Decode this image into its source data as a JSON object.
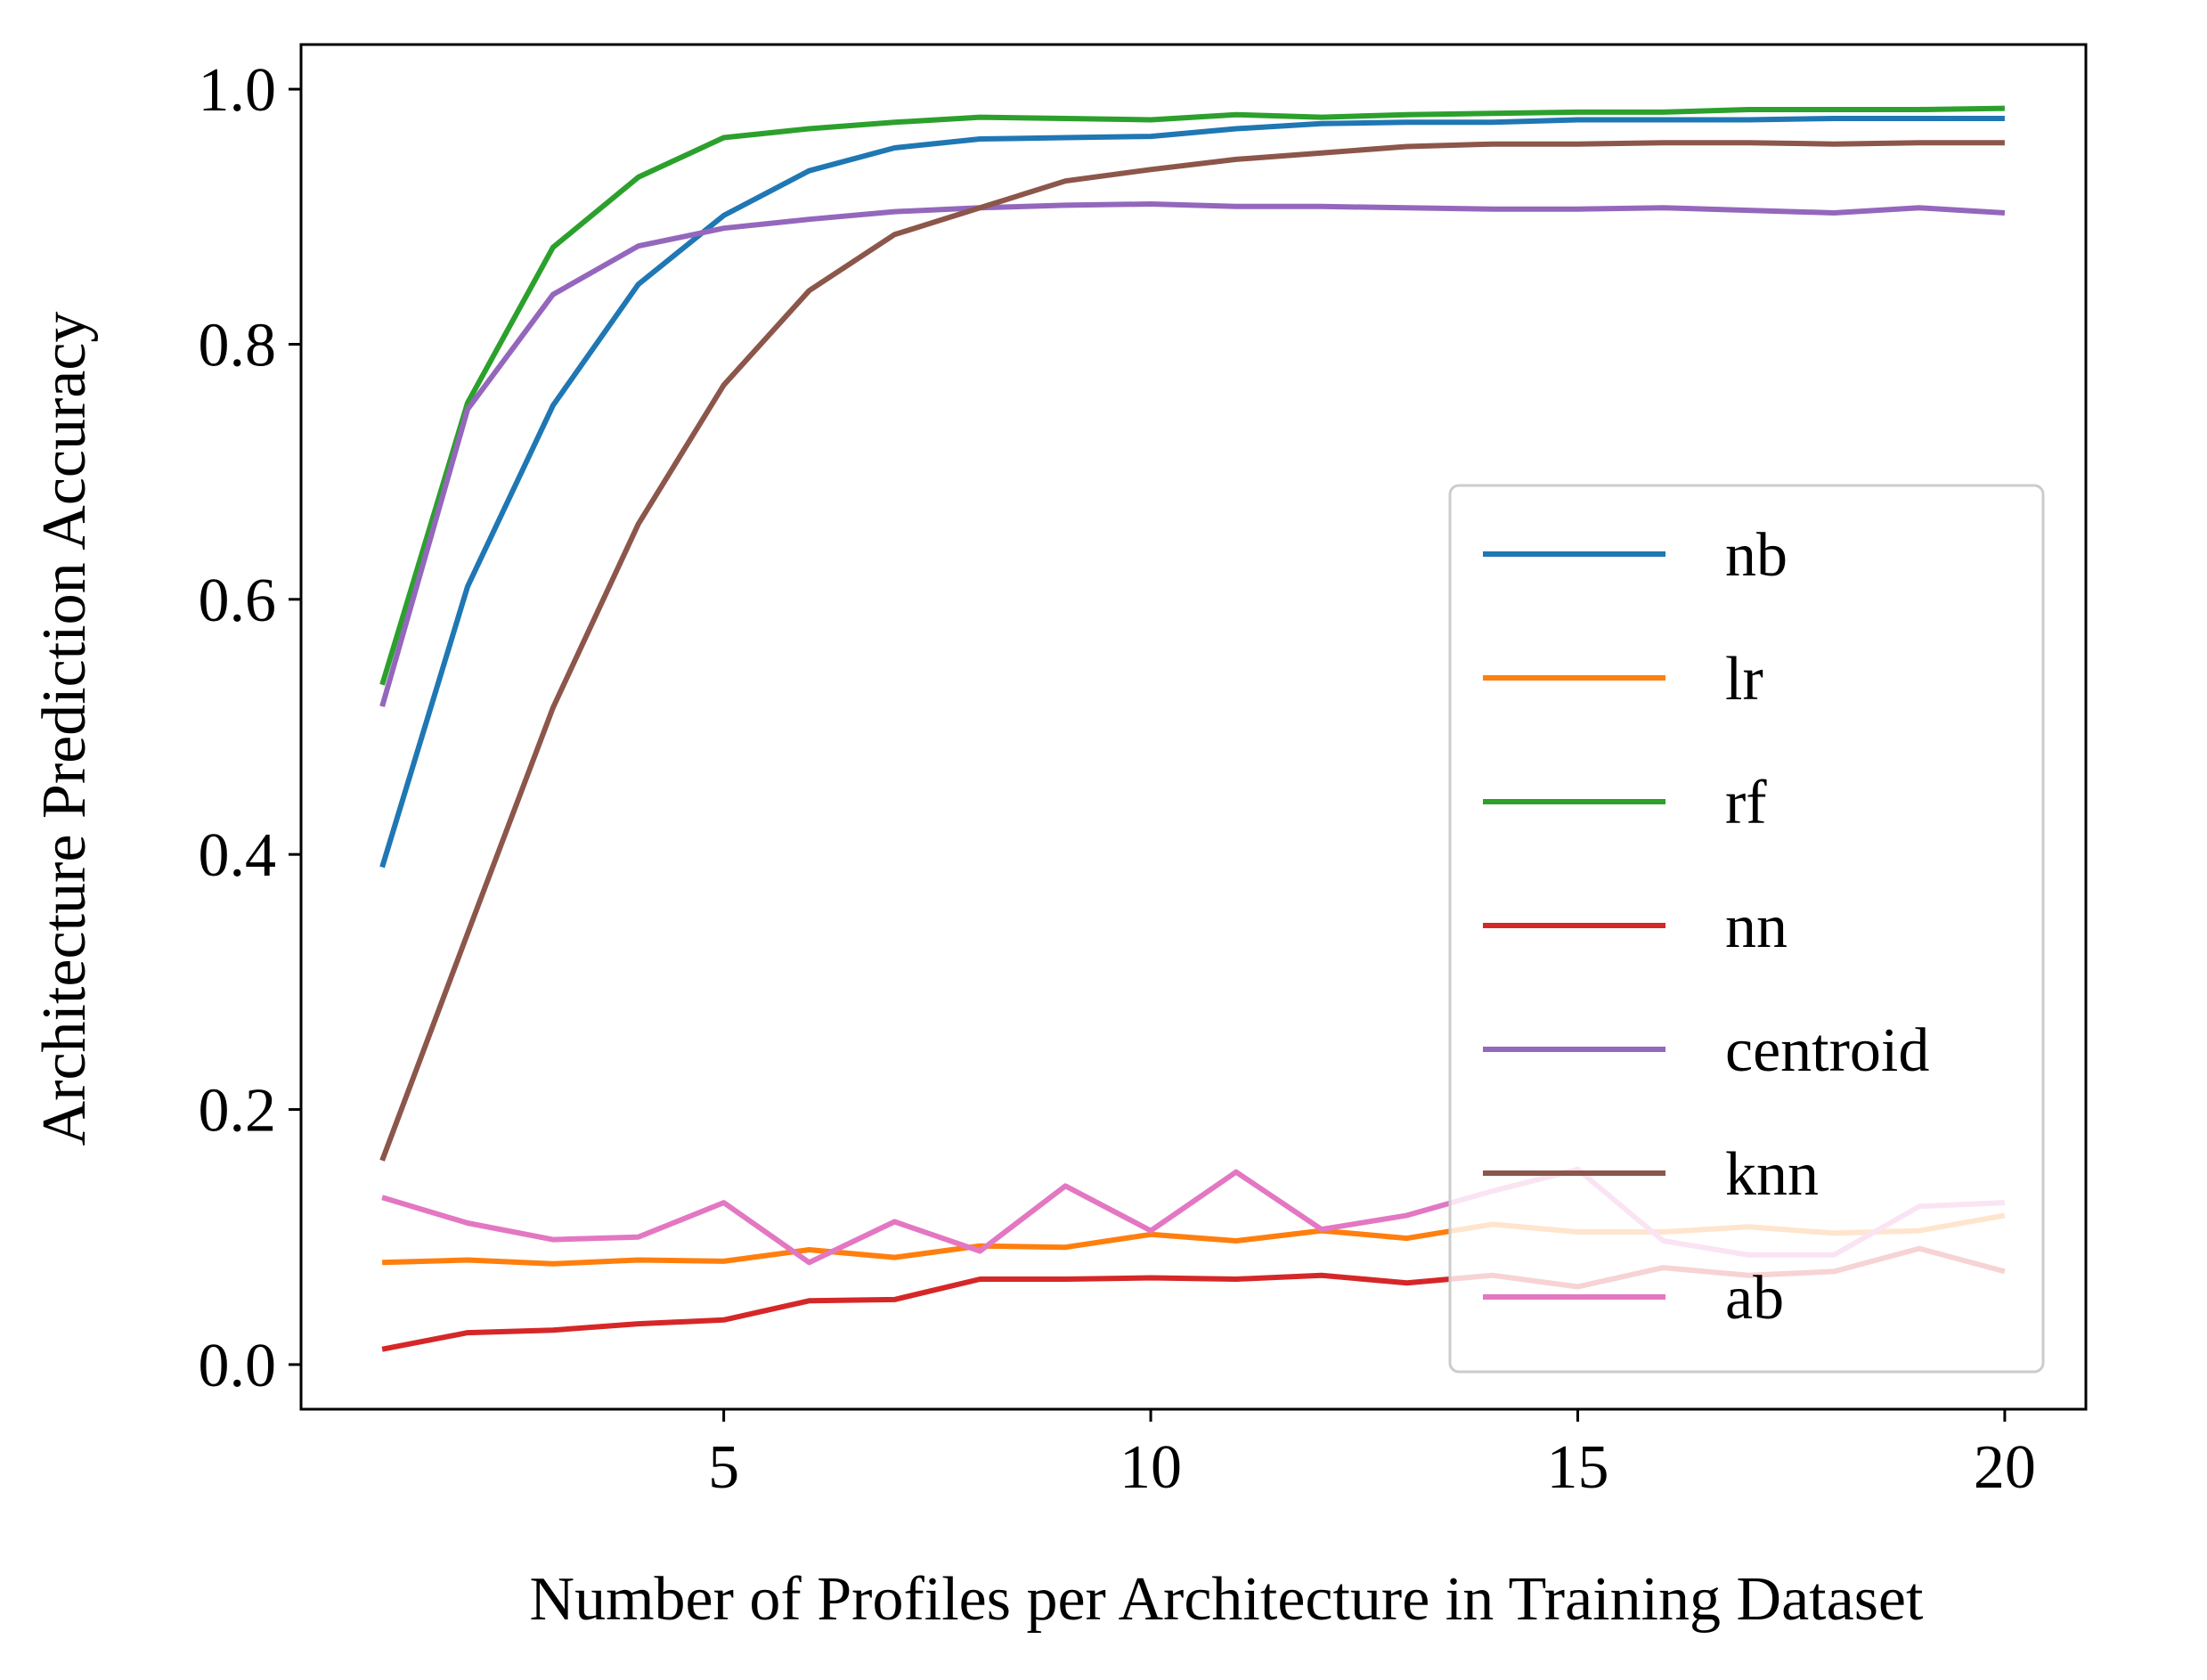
{
  "chart_data": {
    "type": "line",
    "title": "",
    "xlabel": "Number of Profiles per Architecture in Training Dataset",
    "ylabel": "Architecture Prediction Accuracy",
    "xlim": [
      0.05,
      20.95
    ],
    "ylim": [
      -0.035,
      1.035
    ],
    "xticks": [
      5,
      10,
      15,
      20
    ],
    "yticks": [
      0.0,
      0.2,
      0.4,
      0.6,
      0.8,
      1.0
    ],
    "xtick_labels": [
      "5",
      "10",
      "15",
      "20"
    ],
    "ytick_labels": [
      "0.0",
      "0.2",
      "0.4",
      "0.6",
      "0.8",
      "1.0"
    ],
    "grid": false,
    "legend_position": "lower right",
    "x": [
      1,
      2,
      3,
      4,
      5,
      6,
      7,
      8,
      9,
      10,
      11,
      12,
      13,
      14,
      15,
      16,
      17,
      18,
      19,
      20
    ],
    "series": [
      {
        "name": "nb",
        "color": "#1f77b4",
        "values": [
          0.39,
          0.61,
          0.752,
          0.847,
          0.901,
          0.936,
          0.954,
          0.961,
          0.962,
          0.963,
          0.969,
          0.973,
          0.974,
          0.974,
          0.976,
          0.976,
          0.976,
          0.977,
          0.977,
          0.977
        ]
      },
      {
        "name": "lr",
        "color": "#ff7f0e",
        "values": [
          0.08,
          0.082,
          0.079,
          0.082,
          0.081,
          0.09,
          0.084,
          0.093,
          0.092,
          0.102,
          0.097,
          0.105,
          0.099,
          0.11,
          0.104,
          0.104,
          0.108,
          0.103,
          0.105,
          0.117
        ]
      },
      {
        "name": "rf",
        "color": "#2ca02c",
        "values": [
          0.533,
          0.754,
          0.876,
          0.931,
          0.962,
          0.969,
          0.974,
          0.978,
          0.977,
          0.976,
          0.98,
          0.978,
          0.98,
          0.981,
          0.982,
          0.982,
          0.984,
          0.984,
          0.984,
          0.985
        ]
      },
      {
        "name": "nn",
        "color": "#d62728",
        "values": [
          0.012,
          0.025,
          0.027,
          0.032,
          0.035,
          0.05,
          0.051,
          0.067,
          0.067,
          0.068,
          0.067,
          0.07,
          0.064,
          0.07,
          0.061,
          0.076,
          0.07,
          0.073,
          0.091,
          0.073
        ]
      },
      {
        "name": "centroid",
        "color": "#9467bd",
        "values": [
          0.516,
          0.749,
          0.839,
          0.877,
          0.891,
          0.898,
          0.904,
          0.907,
          0.909,
          0.91,
          0.908,
          0.908,
          0.907,
          0.906,
          0.906,
          0.907,
          0.905,
          0.903,
          0.907,
          0.903
        ]
      },
      {
        "name": "knn",
        "color": "#8c564b",
        "values": [
          0.16,
          0.338,
          0.515,
          0.659,
          0.768,
          0.842,
          0.886,
          0.907,
          0.928,
          0.937,
          0.945,
          0.95,
          0.955,
          0.957,
          0.957,
          0.958,
          0.958,
          0.957,
          0.958,
          0.958
        ]
      },
      {
        "name": "ab",
        "color": "#e377c2",
        "values": [
          0.131,
          0.111,
          0.098,
          0.1,
          0.127,
          0.08,
          0.112,
          0.089,
          0.14,
          0.105,
          0.151,
          0.106,
          0.117,
          0.136,
          0.153,
          0.097,
          0.086,
          0.086,
          0.124,
          0.127
        ]
      }
    ]
  }
}
